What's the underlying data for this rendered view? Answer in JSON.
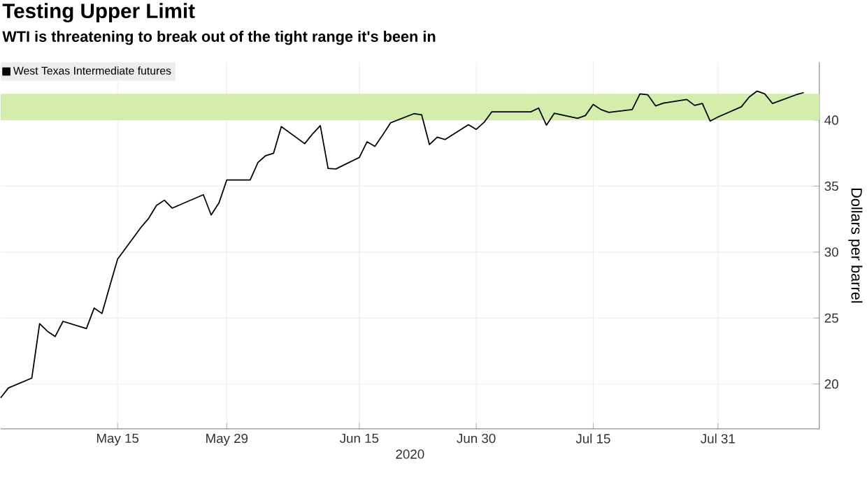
{
  "chart_data": {
    "type": "line",
    "title": "Testing Upper Limit",
    "subtitle": "WTI is threatening to break out of the tight range it's been in",
    "xlabel": "2020",
    "ylabel": "Dollars per barrel",
    "x": [
      "2020-04-30",
      "2020-05-01",
      "2020-05-04",
      "2020-05-05",
      "2020-05-06",
      "2020-05-07",
      "2020-05-08",
      "2020-05-11",
      "2020-05-12",
      "2020-05-13",
      "2020-05-14",
      "2020-05-15",
      "2020-05-18",
      "2020-05-19",
      "2020-05-20",
      "2020-05-21",
      "2020-05-22",
      "2020-05-26",
      "2020-05-27",
      "2020-05-28",
      "2020-05-29",
      "2020-06-01",
      "2020-06-02",
      "2020-06-03",
      "2020-06-04",
      "2020-06-05",
      "2020-06-08",
      "2020-06-09",
      "2020-06-10",
      "2020-06-11",
      "2020-06-12",
      "2020-06-15",
      "2020-06-16",
      "2020-06-17",
      "2020-06-18",
      "2020-06-19",
      "2020-06-22",
      "2020-06-23",
      "2020-06-24",
      "2020-06-25",
      "2020-06-26",
      "2020-06-29",
      "2020-06-30",
      "2020-07-01",
      "2020-07-02",
      "2020-07-06",
      "2020-07-07",
      "2020-07-08",
      "2020-07-09",
      "2020-07-10",
      "2020-07-13",
      "2020-07-14",
      "2020-07-15",
      "2020-07-16",
      "2020-07-17",
      "2020-07-20",
      "2020-07-21",
      "2020-07-22",
      "2020-07-23",
      "2020-07-24",
      "2020-07-27",
      "2020-07-28",
      "2020-07-29",
      "2020-07-30",
      "2020-07-31",
      "2020-08-03",
      "2020-08-04",
      "2020-08-05",
      "2020-08-06",
      "2020-08-07",
      "2020-08-10",
      "2020-08-11"
    ],
    "series": [
      {
        "name": "West Texas Intermediate futures",
        "color": "#000000",
        "values": [
          18.95,
          19.7,
          20.45,
          24.57,
          24.0,
          23.6,
          24.75,
          24.2,
          25.76,
          25.34,
          27.43,
          29.46,
          31.87,
          32.57,
          33.54,
          33.93,
          33.33,
          34.35,
          32.81,
          33.72,
          35.46,
          35.46,
          36.79,
          37.31,
          37.49,
          39.51,
          38.22,
          38.95,
          39.58,
          36.34,
          36.3,
          37.17,
          38.36,
          38.01,
          38.88,
          39.79,
          40.49,
          40.4,
          38.15,
          38.71,
          38.53,
          39.65,
          39.3,
          39.83,
          40.63,
          40.63,
          40.63,
          40.91,
          39.62,
          40.52,
          40.14,
          40.35,
          41.19,
          40.8,
          40.59,
          40.8,
          41.99,
          41.92,
          41.08,
          41.29,
          41.57,
          41.12,
          41.26,
          39.93,
          40.24,
          41.01,
          41.75,
          42.2,
          41.99,
          41.26,
          41.92,
          42.09
        ]
      }
    ],
    "xlim": [
      "2020-04-30",
      "2020-08-13"
    ],
    "xticks": [
      {
        "value": "2020-05-15",
        "label": "May 15"
      },
      {
        "value": "2020-05-29",
        "label": "May 29"
      },
      {
        "value": "2020-06-15",
        "label": "Jun 15"
      },
      {
        "value": "2020-06-30",
        "label": "Jun 30"
      },
      {
        "value": "2020-07-15",
        "label": "Jul 15"
      },
      {
        "value": "2020-07-31",
        "label": "Jul 31"
      }
    ],
    "ylim": [
      16.6,
      44.4
    ],
    "yticks": [
      20,
      25,
      30,
      35,
      40
    ],
    "bands": [
      {
        "axis": "y",
        "from": 40,
        "to": 42,
        "color": "#d3edaa"
      }
    ],
    "grid": true,
    "legend": "top left",
    "line_style": "solid",
    "marker": "none"
  }
}
